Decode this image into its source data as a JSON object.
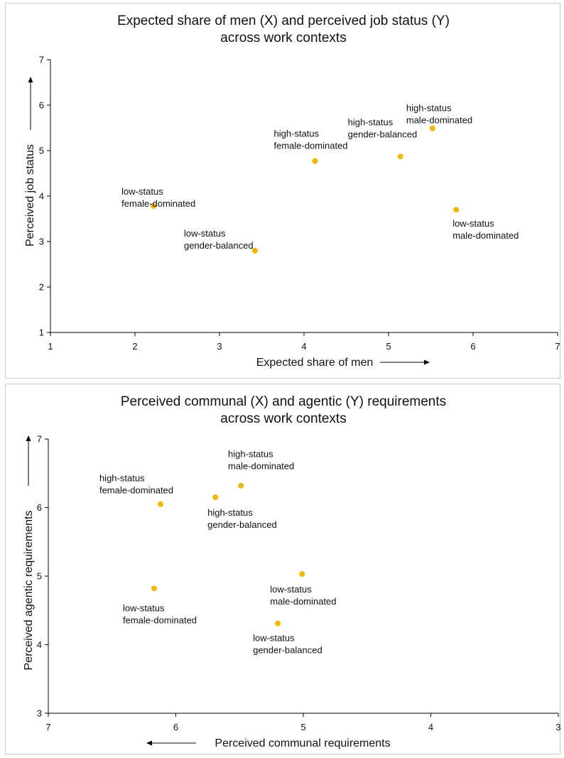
{
  "chart_data": [
    {
      "type": "scatter",
      "title": [
        "Expected share of men (X) and perceived job status (Y)",
        "across work contexts"
      ],
      "xlabel": "Expected share of men",
      "ylabel": "Perceived job status",
      "xlim": [
        1,
        7
      ],
      "ylim": [
        1,
        7
      ],
      "xticks": [
        "1",
        "2",
        "3",
        "4",
        "5",
        "6",
        "7"
      ],
      "yticks": [
        "1",
        "2",
        "3",
        "4",
        "5",
        "6",
        "7"
      ],
      "x_reversed": false,
      "point_color": "#f2b705",
      "points": [
        {
          "label": [
            "low-status",
            "female-dominated"
          ],
          "x": 2.22,
          "y": 3.78
        },
        {
          "label": [
            "low-status",
            "gender-balanced"
          ],
          "x": 3.42,
          "y": 2.8
        },
        {
          "label": [
            "high-status",
            "female-dominated"
          ],
          "x": 4.13,
          "y": 4.77
        },
        {
          "label": [
            "high-status",
            "gender-balanced"
          ],
          "x": 5.14,
          "y": 4.87
        },
        {
          "label": [
            "high-status",
            "male-dominated"
          ],
          "x": 5.52,
          "y": 5.49
        },
        {
          "label": [
            "low-status",
            "male-dominated"
          ],
          "x": 5.8,
          "y": 3.7
        }
      ]
    },
    {
      "type": "scatter",
      "title": [
        "Perceived communal (X) and agentic (Y) requirements",
        "across work contexts"
      ],
      "xlabel": "Perceived communal requirements",
      "ylabel": "Perceived agentic requirements",
      "xlim": [
        7,
        3
      ],
      "ylim": [
        3,
        7
      ],
      "xticks": [
        "7",
        "6",
        "5",
        "4",
        "3"
      ],
      "yticks": [
        "3",
        "4",
        "5",
        "6",
        "7"
      ],
      "x_reversed": true,
      "point_color": "#f2b705",
      "points": [
        {
          "label": [
            "high-status",
            "female-dominated"
          ],
          "x": 6.12,
          "y": 6.05
        },
        {
          "label": [
            "high-status",
            "gender-balanced"
          ],
          "x": 5.69,
          "y": 6.15
        },
        {
          "label": [
            "high-status",
            "male-dominated"
          ],
          "x": 5.49,
          "y": 6.32
        },
        {
          "label": [
            "low-status",
            "female-dominated"
          ],
          "x": 6.17,
          "y": 4.82
        },
        {
          "label": [
            "low-status",
            "male-dominated"
          ],
          "x": 5.01,
          "y": 5.03
        },
        {
          "label": [
            "low-status",
            "gender-balanced"
          ],
          "x": 5.2,
          "y": 4.31
        }
      ]
    }
  ]
}
